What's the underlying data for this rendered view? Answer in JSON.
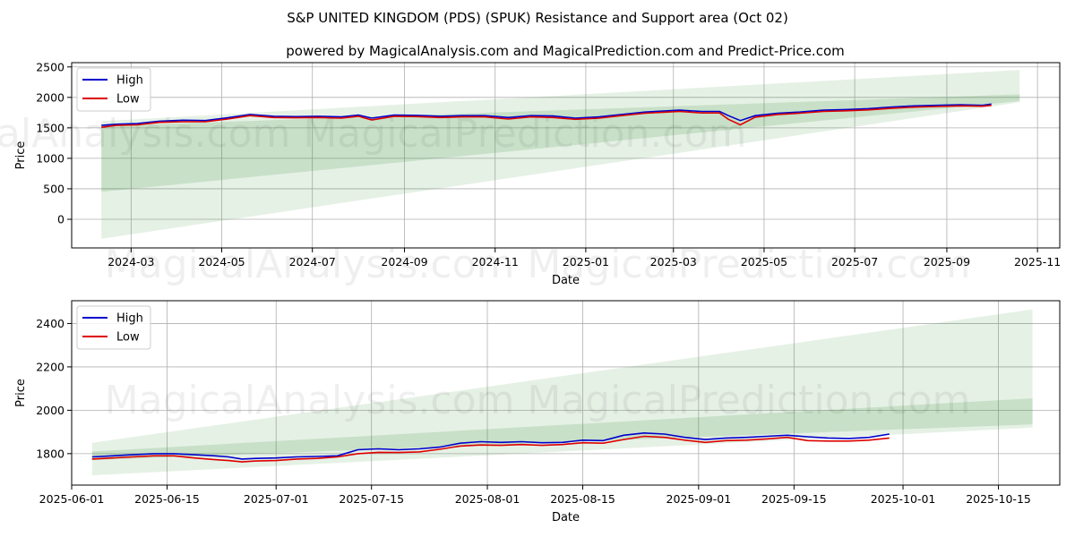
{
  "title": "S&P UNITED KINGDOM (PDS) (SPUK) Resistance and Support area (Oct 02)",
  "subtitle": "powered by MagicalAnalysis.com and MagicalPrediction.com and Predict-Price.com",
  "watermark": "MagicalAnalysis.com   MagicalPrediction.com",
  "colors": {
    "high": "#0000cc",
    "low": "#dd0000",
    "band": "#2e8b2e"
  },
  "chart_data": [
    {
      "type": "line",
      "xlabel": "Date",
      "ylabel": "Price",
      "xlim": [
        "2024-01-21",
        "2025-11-16"
      ],
      "ylim": [
        -470,
        2570
      ],
      "x_ticks": [
        "2024-03",
        "2024-05",
        "2024-07",
        "2024-09",
        "2024-11",
        "2025-01",
        "2025-03",
        "2025-05",
        "2025-07",
        "2025-09",
        "2025-11"
      ],
      "x_tick_dates": [
        "2024-03-01",
        "2024-05-01",
        "2024-07-01",
        "2024-09-01",
        "2024-11-01",
        "2025-01-01",
        "2025-03-01",
        "2025-05-01",
        "2025-07-01",
        "2025-09-01",
        "2025-11-01"
      ],
      "y_ticks": [
        "0",
        "500",
        "1000",
        "1500",
        "2000",
        "2500"
      ],
      "y_tick_values": [
        0,
        500,
        1000,
        1500,
        2000,
        2500
      ],
      "legend": [
        "High",
        "Low"
      ],
      "legend_position": "top-left",
      "grid": true,
      "bands": [
        {
          "x": [
            "2024-02-10",
            "2025-10-20"
          ],
          "upper": [
            1530,
            2050
          ],
          "lower": [
            450,
            1940
          ]
        },
        {
          "x": [
            "2024-02-10",
            "2025-10-20"
          ],
          "upper": [
            1610,
            2450
          ],
          "lower": [
            -320,
            1920
          ]
        }
      ],
      "series": [
        {
          "name": "High",
          "x": [
            "2024-02-10",
            "2024-02-20",
            "2024-03-05",
            "2024-03-20",
            "2024-04-05",
            "2024-04-20",
            "2024-05-05",
            "2024-05-20",
            "2024-06-05",
            "2024-06-20",
            "2024-07-05",
            "2024-07-20",
            "2024-08-01",
            "2024-08-10",
            "2024-08-25",
            "2024-09-10",
            "2024-09-25",
            "2024-10-10",
            "2024-10-25",
            "2024-11-10",
            "2024-11-25",
            "2024-12-10",
            "2024-12-25",
            "2025-01-10",
            "2025-01-25",
            "2025-02-10",
            "2025-02-25",
            "2025-03-05",
            "2025-03-20",
            "2025-04-01",
            "2025-04-07",
            "2025-04-15",
            "2025-04-25",
            "2025-05-10",
            "2025-05-25",
            "2025-06-10",
            "2025-06-25",
            "2025-07-10",
            "2025-07-25",
            "2025-08-10",
            "2025-08-25",
            "2025-09-10",
            "2025-09-25",
            "2025-10-01"
          ],
          "values": [
            1540,
            1560,
            1570,
            1610,
            1625,
            1620,
            1665,
            1720,
            1690,
            1685,
            1690,
            1680,
            1710,
            1660,
            1710,
            1705,
            1690,
            1700,
            1700,
            1670,
            1700,
            1695,
            1660,
            1680,
            1720,
            1760,
            1780,
            1790,
            1770,
            1770,
            1700,
            1620,
            1700,
            1740,
            1760,
            1790,
            1800,
            1815,
            1840,
            1860,
            1870,
            1880,
            1870,
            1890
          ]
        },
        {
          "name": "Low",
          "x": [
            "2024-02-10",
            "2024-02-20",
            "2024-03-05",
            "2024-03-20",
            "2024-04-05",
            "2024-04-20",
            "2024-05-05",
            "2024-05-20",
            "2024-06-05",
            "2024-06-20",
            "2024-07-05",
            "2024-07-20",
            "2024-08-01",
            "2024-08-10",
            "2024-08-25",
            "2024-09-10",
            "2024-09-25",
            "2024-10-10",
            "2024-10-25",
            "2024-11-10",
            "2024-11-25",
            "2024-12-10",
            "2024-12-25",
            "2025-01-10",
            "2025-01-25",
            "2025-02-10",
            "2025-02-25",
            "2025-03-05",
            "2025-03-20",
            "2025-04-01",
            "2025-04-07",
            "2025-04-15",
            "2025-04-25",
            "2025-05-10",
            "2025-05-25",
            "2025-06-10",
            "2025-06-25",
            "2025-07-10",
            "2025-07-25",
            "2025-08-10",
            "2025-08-25",
            "2025-09-10",
            "2025-09-25",
            "2025-10-01"
          ],
          "values": [
            1510,
            1540,
            1550,
            1590,
            1600,
            1600,
            1645,
            1700,
            1670,
            1665,
            1670,
            1660,
            1690,
            1630,
            1690,
            1685,
            1670,
            1680,
            1680,
            1645,
            1680,
            1670,
            1640,
            1660,
            1700,
            1740,
            1760,
            1770,
            1745,
            1745,
            1640,
            1550,
            1675,
            1720,
            1740,
            1770,
            1780,
            1795,
            1820,
            1840,
            1850,
            1860,
            1855,
            1870
          ]
        }
      ]
    },
    {
      "type": "line",
      "xlabel": "Date",
      "ylabel": "Price",
      "xlim": [
        "2025-06-01",
        "2025-10-24"
      ],
      "ylim": [
        1655,
        2505
      ],
      "x_ticks": [
        "2025-06-01",
        "2025-06-15",
        "2025-07-01",
        "2025-07-15",
        "2025-08-01",
        "2025-08-15",
        "2025-09-01",
        "2025-09-15",
        "2025-10-01",
        "2025-10-15"
      ],
      "x_tick_dates": [
        "2025-06-01",
        "2025-06-15",
        "2025-07-01",
        "2025-07-15",
        "2025-08-01",
        "2025-08-15",
        "2025-09-01",
        "2025-09-15",
        "2025-10-01",
        "2025-10-15"
      ],
      "y_ticks": [
        "1800",
        "2000",
        "2200",
        "2400"
      ],
      "y_tick_values": [
        1800,
        2000,
        2200,
        2400
      ],
      "legend": [
        "High",
        "Low"
      ],
      "legend_position": "top-left",
      "grid": true,
      "bands": [
        {
          "x": [
            "2025-06-04",
            "2025-10-20"
          ],
          "upper": [
            1810,
            2055
          ],
          "lower": [
            1770,
            1935
          ]
        },
        {
          "x": [
            "2025-06-04",
            "2025-10-20"
          ],
          "upper": [
            1850,
            2465
          ],
          "lower": [
            1700,
            1920
          ]
        }
      ],
      "series": [
        {
          "name": "High",
          "x": [
            "2025-06-04",
            "2025-06-07",
            "2025-06-10",
            "2025-06-13",
            "2025-06-16",
            "2025-06-19",
            "2025-06-22",
            "2025-06-24",
            "2025-06-26",
            "2025-06-28",
            "2025-07-01",
            "2025-07-04",
            "2025-07-07",
            "2025-07-10",
            "2025-07-13",
            "2025-07-16",
            "2025-07-19",
            "2025-07-22",
            "2025-07-25",
            "2025-07-28",
            "2025-07-31",
            "2025-08-03",
            "2025-08-06",
            "2025-08-09",
            "2025-08-12",
            "2025-08-15",
            "2025-08-18",
            "2025-08-21",
            "2025-08-24",
            "2025-08-27",
            "2025-08-30",
            "2025-09-02",
            "2025-09-05",
            "2025-09-08",
            "2025-09-11",
            "2025-09-14",
            "2025-09-17",
            "2025-09-20",
            "2025-09-23",
            "2025-09-26",
            "2025-09-29"
          ],
          "values": [
            1785,
            1790,
            1795,
            1800,
            1800,
            1795,
            1790,
            1785,
            1775,
            1778,
            1780,
            1785,
            1787,
            1790,
            1818,
            1822,
            1818,
            1822,
            1830,
            1848,
            1855,
            1852,
            1855,
            1850,
            1852,
            1862,
            1860,
            1885,
            1895,
            1890,
            1875,
            1865,
            1872,
            1875,
            1880,
            1885,
            1878,
            1872,
            1870,
            1875,
            1890
          ]
        },
        {
          "name": "Low",
          "x": [
            "2025-06-04",
            "2025-06-07",
            "2025-06-10",
            "2025-06-13",
            "2025-06-16",
            "2025-06-19",
            "2025-06-22",
            "2025-06-24",
            "2025-06-26",
            "2025-06-28",
            "2025-07-01",
            "2025-07-04",
            "2025-07-07",
            "2025-07-10",
            "2025-07-13",
            "2025-07-16",
            "2025-07-19",
            "2025-07-22",
            "2025-07-25",
            "2025-07-28",
            "2025-07-31",
            "2025-08-03",
            "2025-08-06",
            "2025-08-09",
            "2025-08-12",
            "2025-08-15",
            "2025-08-18",
            "2025-08-21",
            "2025-08-24",
            "2025-08-27",
            "2025-08-30",
            "2025-09-02",
            "2025-09-05",
            "2025-09-08",
            "2025-09-11",
            "2025-09-14",
            "2025-09-17",
            "2025-09-20",
            "2025-09-23",
            "2025-09-26",
            "2025-09-29"
          ],
          "values": [
            1775,
            1780,
            1785,
            1790,
            1790,
            1780,
            1772,
            1768,
            1762,
            1766,
            1768,
            1775,
            1778,
            1785,
            1800,
            1806,
            1805,
            1808,
            1820,
            1835,
            1840,
            1838,
            1842,
            1838,
            1842,
            1850,
            1848,
            1865,
            1880,
            1875,
            1862,
            1852,
            1860,
            1862,
            1868,
            1875,
            1860,
            1858,
            1858,
            1862,
            1872
          ]
        }
      ]
    }
  ]
}
